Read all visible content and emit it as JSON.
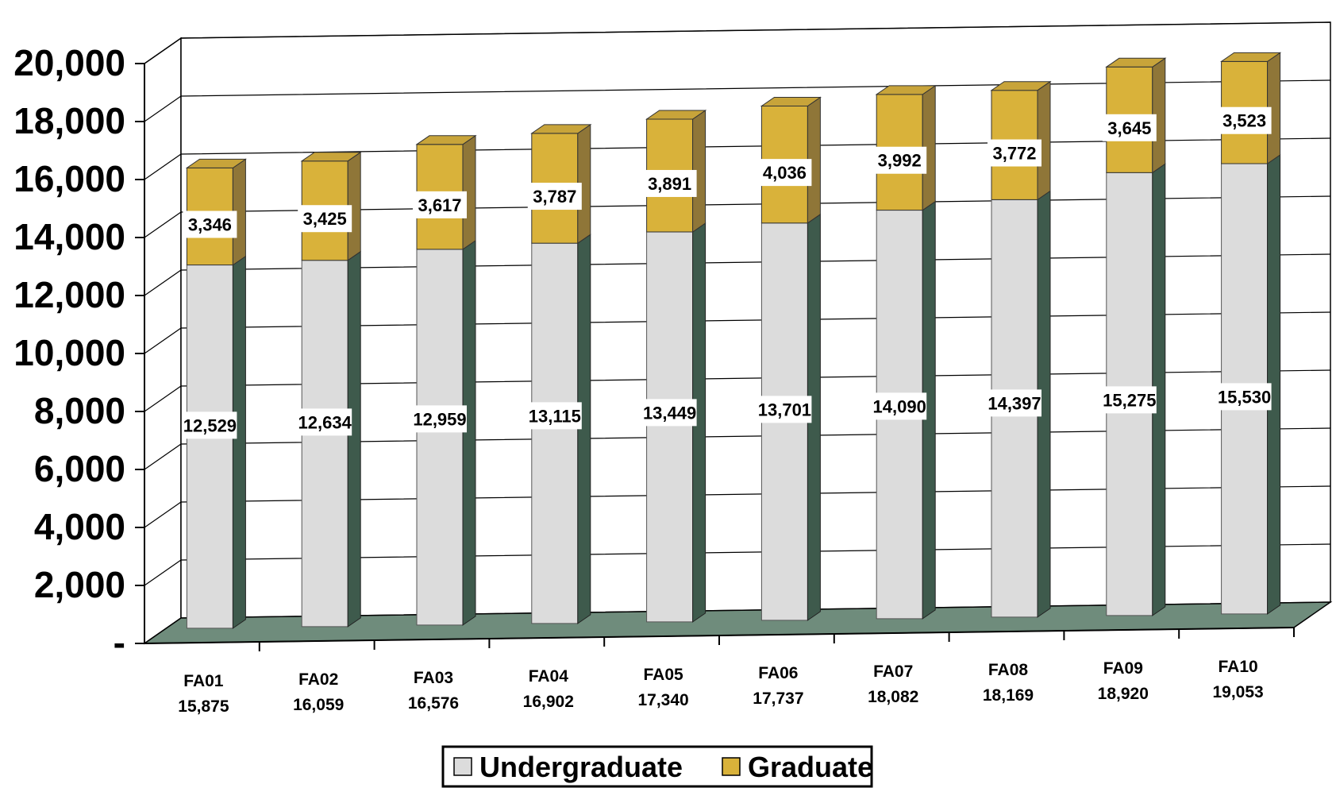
{
  "chart_data": {
    "type": "bar",
    "stacked": true,
    "three_d": true,
    "categories": [
      "FA01",
      "FA02",
      "FA03",
      "FA04",
      "FA05",
      "FA06",
      "FA07",
      "FA08",
      "FA09",
      "FA10"
    ],
    "category_totals": [
      "15,875",
      "16,059",
      "16,576",
      "16,902",
      "17,340",
      "17,737",
      "18,082",
      "18,169",
      "18,920",
      "19,053"
    ],
    "series": [
      {
        "name": "Undergraduate",
        "values": [
          12529,
          12634,
          12959,
          13115,
          13449,
          13701,
          14090,
          14397,
          15275,
          15530
        ],
        "labels": [
          "12,529",
          "12,634",
          "12,959",
          "13,115",
          "13,449",
          "13,701",
          "14,090",
          "14,397",
          "15,275",
          "15,530"
        ],
        "color": "#dcdcdc"
      },
      {
        "name": "Graduate",
        "values": [
          3346,
          3425,
          3617,
          3787,
          3891,
          4036,
          3992,
          3772,
          3645,
          3523
        ],
        "labels": [
          "3,346",
          "3,425",
          "3,617",
          "3,787",
          "3,891",
          "4,036",
          "3,992",
          "3,772",
          "3,645",
          "3,523"
        ],
        "color": "#d9b23a"
      }
    ],
    "yticks": [
      "-",
      "2,000",
      "4,000",
      "6,000",
      "8,000",
      "10,000",
      "12,000",
      "14,000",
      "16,000",
      "18,000",
      "20,000"
    ],
    "ylim": [
      0,
      20000
    ],
    "title": "",
    "xlabel": "",
    "ylabel": "",
    "grid": true,
    "legend": "bottom-center",
    "colors": {
      "undergrad_front": "#dcdcdc",
      "undergrad_side": "#3e5a4c",
      "grad_front": "#d9b23a",
      "grad_side": "#8f7638",
      "grad_top": "#c8a43a",
      "floor": "#6f8c7c"
    }
  }
}
